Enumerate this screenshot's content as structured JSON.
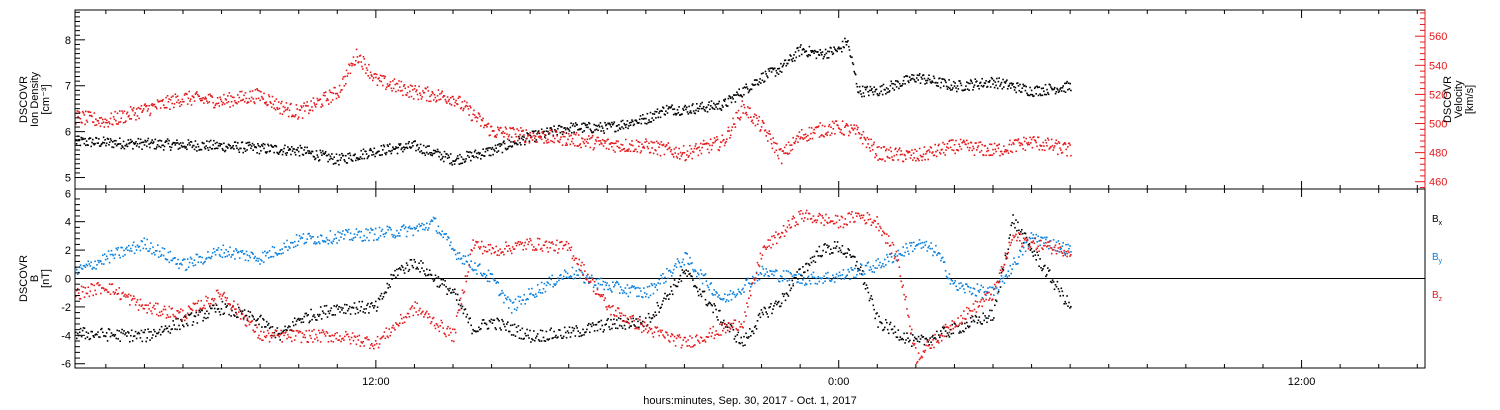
{
  "colors": {
    "black": "#000000",
    "red": "#e41a1c",
    "blue": "#0a7fdc"
  },
  "time_axis": {
    "label": "hours:minutes, Sep. 30, 2017 - Oct.  1, 2017",
    "major_ticks": [
      {
        "hour": 12,
        "label": "12:00"
      },
      {
        "hour": 24,
        "label": "0:00"
      },
      {
        "hour": 36,
        "label": "12:00"
      }
    ],
    "range_hours": [
      4.2,
      39.2
    ],
    "data_end_hour": 30.0
  },
  "chart_data": [
    {
      "type": "scatter",
      "panel": "top",
      "title": "",
      "ylabel": "DSCOVR\nIon Density\n[cm⁻³]",
      "ylim": [
        4.75,
        8.65
      ],
      "yticks": [
        "5",
        "6",
        "7",
        "8"
      ],
      "y2label": "DSCOVR\nVelocity\n[km/s]",
      "y2lim": [
        455,
        578
      ],
      "y2ticks": [
        "460",
        "480",
        "500",
        "520",
        "540",
        "560"
      ],
      "series": [
        {
          "name": "",
          "axis": "left",
          "color": "black",
          "x": [
            4.2,
            6,
            8,
            10,
            11,
            12,
            13,
            14,
            15,
            16,
            17,
            18,
            19,
            19.5,
            20,
            21,
            21.5,
            22,
            22.5,
            23,
            23.5,
            24,
            24.2,
            24.5,
            25,
            26,
            27,
            28,
            29,
            30
          ],
          "y": [
            5.8,
            5.75,
            5.7,
            5.6,
            5.4,
            5.6,
            5.7,
            5.4,
            5.6,
            5.9,
            6.1,
            6.1,
            6.3,
            6.5,
            6.5,
            6.6,
            6.9,
            7.2,
            7.4,
            7.8,
            7.7,
            7.8,
            8.0,
            6.9,
            6.9,
            7.2,
            7.0,
            7.1,
            6.9,
            7.0
          ]
        },
        {
          "name": "",
          "axis": "right",
          "color": "red",
          "x": [
            4.2,
            5,
            6,
            7,
            8,
            9,
            9.5,
            10,
            11,
            11.5,
            12,
            13,
            14,
            15,
            16,
            17,
            18,
            19,
            20,
            21,
            21.5,
            22,
            22.5,
            23,
            23.5,
            24,
            24.5,
            25,
            26,
            27,
            28,
            29,
            30
          ],
          "y": [
            505,
            502,
            510,
            518,
            516,
            520,
            512,
            508,
            522,
            548,
            530,
            522,
            518,
            495,
            492,
            490,
            486,
            485,
            480,
            488,
            512,
            498,
            478,
            492,
            496,
            498,
            494,
            480,
            478,
            485,
            482,
            488,
            482
          ]
        }
      ]
    },
    {
      "type": "scatter",
      "panel": "bottom",
      "title": "",
      "ylabel": "DSCOVR\nB\n[nT]",
      "ylim": [
        -6.3,
        6.3
      ],
      "yticks": [
        "-6",
        "-4",
        "-2",
        "0",
        "2",
        "4",
        "6"
      ],
      "zero_line": true,
      "legend": [
        "Bx",
        "By",
        "Bz"
      ],
      "series": [
        {
          "name": "Bx",
          "color": "black",
          "x": [
            4.2,
            5,
            6,
            7,
            8,
            9,
            9.5,
            10,
            11,
            12,
            12.5,
            13,
            14,
            14.5,
            15,
            16,
            17,
            18,
            19,
            20,
            21,
            21.5,
            22,
            22.5,
            23,
            23.5,
            24,
            24.5,
            25,
            26,
            27,
            28,
            28.5,
            29,
            30
          ],
          "y": [
            -3.8,
            -3.9,
            -4.0,
            -3.0,
            -2.0,
            -3.0,
            -4.0,
            -2.8,
            -2.0,
            -2.0,
            0.5,
            1.2,
            -1.0,
            -3.5,
            -3.0,
            -4.0,
            -3.8,
            -3.2,
            -3.0,
            0.5,
            -3.0,
            -4.5,
            -2.5,
            -1.5,
            0.5,
            2.0,
            2.3,
            1.0,
            -3.0,
            -4.5,
            -3.5,
            -2.5,
            4.2,
            2.0,
            -2.0
          ]
        },
        {
          "name": "By",
          "color": "blue",
          "x": [
            4.2,
            5,
            6,
            7,
            8,
            9,
            10,
            11,
            12,
            13,
            13.5,
            14,
            15,
            15.5,
            16,
            17,
            18,
            19,
            20,
            21,
            21.5,
            22,
            23,
            24,
            25,
            26,
            26.5,
            27,
            28,
            29,
            30
          ],
          "y": [
            0.5,
            1.5,
            2.5,
            1.0,
            2.0,
            1.5,
            2.8,
            3.0,
            3.2,
            3.5,
            4.0,
            2.0,
            0.0,
            -2.0,
            -1.0,
            0.5,
            -0.5,
            -1.0,
            1.5,
            -1.5,
            -0.5,
            0.5,
            0.0,
            0.2,
            1.0,
            2.5,
            2.0,
            -0.5,
            -1.0,
            3.0,
            2.0
          ]
        },
        {
          "name": "Bz",
          "color": "red",
          "x": [
            4.2,
            5,
            6,
            7,
            8,
            9,
            10,
            11,
            12,
            13,
            14,
            14.5,
            15,
            16,
            17,
            18,
            19,
            20,
            21,
            21.5,
            22,
            23,
            24,
            24.5,
            25,
            25.5,
            26,
            27,
            28,
            28.5,
            29,
            30
          ],
          "y": [
            -1.0,
            -0.5,
            -2.0,
            -2.5,
            -1.0,
            -4.0,
            -4.0,
            -4.0,
            -4.5,
            -2.0,
            -4.0,
            2.5,
            2.0,
            2.5,
            2.2,
            -2.0,
            -3.5,
            -4.5,
            -3.5,
            -3.0,
            2.0,
            4.5,
            4.0,
            4.5,
            4.0,
            1.5,
            -5.5,
            -3.0,
            -1.0,
            3.0,
            2.5,
            2.0
          ]
        }
      ]
    }
  ]
}
